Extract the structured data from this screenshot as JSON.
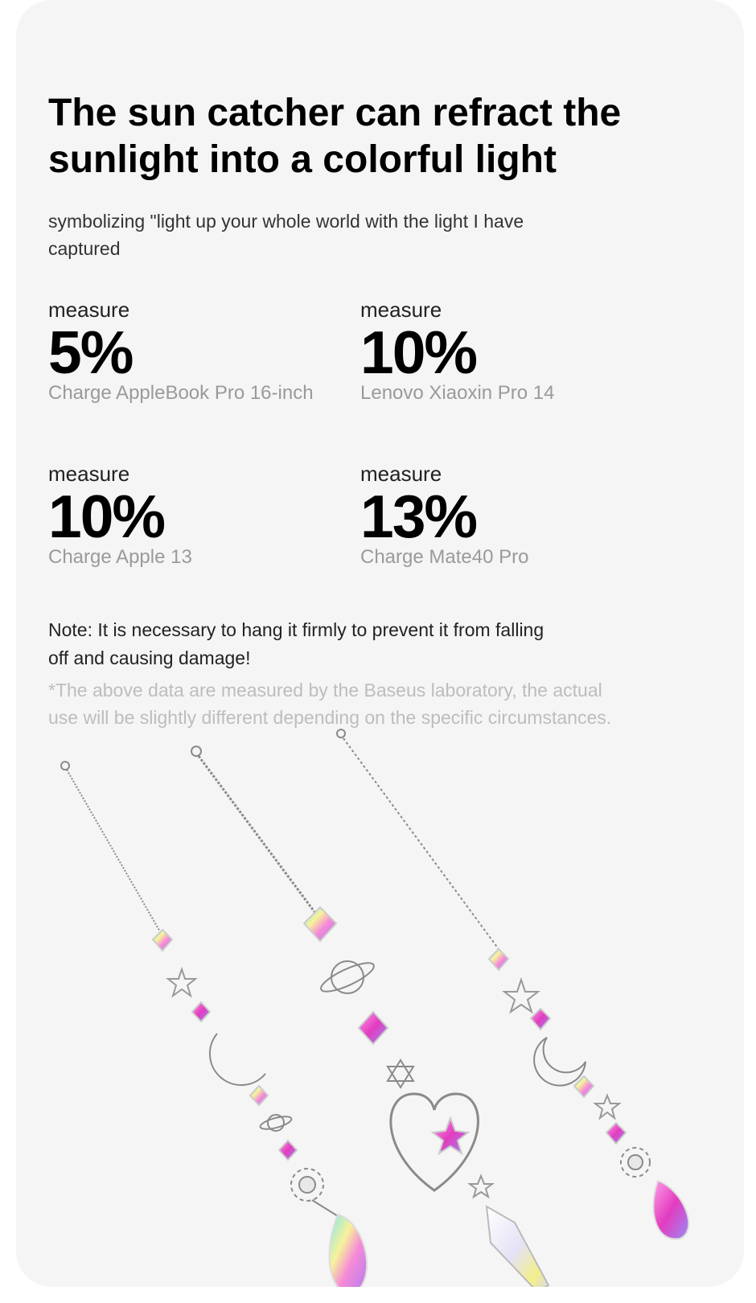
{
  "heading": {
    "line1": "The sun catcher can refract the",
    "line2": "sunlight into a colorful light"
  },
  "subtitle": {
    "line1": "symbolizing \"light up your whole world with the light I have",
    "line2": "captured"
  },
  "stats": [
    {
      "label": "measure",
      "value": "5%",
      "caption": "Charge AppleBook Pro 16-inch"
    },
    {
      "label": "measure",
      "value": "10%",
      "caption": "Lenovo Xiaoxin Pro 14"
    },
    {
      "label": "measure",
      "value": "10%",
      "caption": "Charge Apple 13"
    },
    {
      "label": "measure",
      "value": "13%",
      "caption": "Charge Mate40 Pro"
    }
  ],
  "note": {
    "line1": "Note: It is necessary to hang it firmly to prevent it from falling",
    "line2": "off and causing damage!"
  },
  "disclaimer": {
    "line1": "*The above data are measured by the Baseus laboratory, the actual",
    "line2": "use will be slightly different depending on the specific circumstances."
  },
  "colors": {
    "card_background": "#f5f5f5",
    "page_background": "#ffffff",
    "caption_gray": "#9a9a9a",
    "disclaimer_gray": "#bdbdbd"
  },
  "image": {
    "subject": "three crystal sun catcher pendants",
    "icons": [
      "moon-icon",
      "star-icon",
      "planet-icon",
      "sun-icon",
      "heart-icon",
      "crystal-drop-icon"
    ]
  }
}
